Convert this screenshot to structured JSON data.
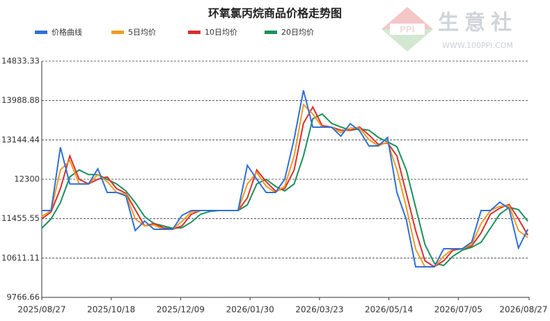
{
  "chart_data": {
    "type": "line",
    "title": "环氧氯丙烷商品价格走势图",
    "watermark": {
      "brand": "生意社",
      "url": "WWW.100PPI.COM"
    },
    "x": [
      "2025/08/27",
      "2025/09/03",
      "2025/09/10",
      "2025/09/17",
      "2025/09/24",
      "2025/10/01",
      "2025/10/08",
      "2025/10/15",
      "2025/10/22",
      "2025/10/29",
      "2025/11/05",
      "2025/11/12",
      "2025/11/19",
      "2025/11/26",
      "2025/12/03",
      "2025/12/10",
      "2025/12/17",
      "2025/12/24",
      "2025/12/31",
      "2026/01/07",
      "2026/01/14",
      "2026/01/21",
      "2026/01/28",
      "2026/02/04",
      "2026/02/11",
      "2026/02/18",
      "2026/02/25",
      "2026/03/04",
      "2026/03/11",
      "2026/03/18",
      "2026/03/25",
      "2026/04/01",
      "2026/04/08",
      "2026/04/15",
      "2026/04/22",
      "2026/04/29",
      "2026/05/06",
      "2026/05/13",
      "2026/05/20",
      "2026/05/27",
      "2026/06/03",
      "2026/06/10",
      "2026/06/17",
      "2026/06/24",
      "2026/07/01",
      "2026/07/08",
      "2026/07/15",
      "2026/07/22",
      "2026/07/29",
      "2026/08/05",
      "2026/08/12",
      "2026/08/19",
      "2026/08/26"
    ],
    "series": [
      {
        "name": "价格曲线",
        "color": "#2f6fd8",
        "values": [
          11629,
          11629,
          12985,
          12200,
          12200,
          12200,
          12523,
          12017,
          12017,
          11942,
          11200,
          11406,
          11227,
          11227,
          11227,
          11525,
          11629,
          11629,
          11629,
          11629,
          11629,
          11629,
          12598,
          12300,
          12017,
          12017,
          12300,
          13164,
          14207,
          13418,
          13418,
          13418,
          13224,
          13492,
          13343,
          13015,
          13015,
          13194,
          12017,
          11436,
          10422,
          10422,
          10422,
          10810,
          10810,
          10810,
          10950,
          11629,
          11629,
          11808,
          11674,
          10825,
          11227
        ]
      },
      {
        "name": "5日均价",
        "color": "#f39a1e",
        "values": [
          11500,
          11629,
          12500,
          12700,
          12200,
          12200,
          12400,
          12250,
          12017,
          11980,
          11450,
          11300,
          11320,
          11227,
          11227,
          11400,
          11600,
          11629,
          11629,
          11629,
          11629,
          11629,
          12200,
          12450,
          12150,
          12017,
          12150,
          12800,
          13900,
          13700,
          13418,
          13418,
          13300,
          13400,
          13400,
          13150,
          13015,
          13100,
          12500,
          11700,
          10800,
          10422,
          10422,
          10650,
          10810,
          10810,
          10900,
          11350,
          11629,
          11720,
          11730,
          11200,
          11050
        ]
      },
      {
        "name": "10日均价",
        "color": "#d9302c",
        "values": [
          11450,
          11600,
          12100,
          12800,
          12300,
          12200,
          12300,
          12350,
          12100,
          12000,
          11650,
          11300,
          11350,
          11260,
          11227,
          11300,
          11550,
          11629,
          11629,
          11629,
          11629,
          11629,
          11900,
          12500,
          12250,
          12050,
          12100,
          12500,
          13500,
          13850,
          13450,
          13418,
          13350,
          13350,
          13420,
          13250,
          13050,
          13080,
          12800,
          12000,
          11200,
          10550,
          10422,
          10550,
          10780,
          10810,
          10870,
          11150,
          11550,
          11680,
          11760,
          11450,
          11100
        ]
      },
      {
        "name": "20日均价",
        "color": "#17925a",
        "values": [
          11250,
          11450,
          11800,
          12350,
          12500,
          12400,
          12400,
          12300,
          12200,
          12050,
          11800,
          11500,
          11350,
          11300,
          11250,
          11260,
          11380,
          11550,
          11610,
          11629,
          11629,
          11629,
          11750,
          12200,
          12300,
          12150,
          12050,
          12200,
          12800,
          13600,
          13700,
          13500,
          13420,
          13350,
          13380,
          13350,
          13200,
          13100,
          13000,
          12500,
          11700,
          10900,
          10500,
          10450,
          10650,
          10780,
          10840,
          10950,
          11250,
          11550,
          11700,
          11650,
          11400
        ]
      }
    ],
    "xlim": [
      "2025/08/27",
      "2026/08/27"
    ],
    "xticks": [
      "2025/08/27",
      "2025/10/18",
      "2025/12/09",
      "2026/01/30",
      "2026/03/23",
      "2026/05/14",
      "2026/07/05",
      "2026/08/27"
    ],
    "ylim": [
      9766.66,
      14833.33
    ],
    "yticks": [
      9766.66,
      10611.11,
      11455.55,
      12300,
      13144.44,
      13988.88,
      14833.33
    ],
    "grid": true
  }
}
